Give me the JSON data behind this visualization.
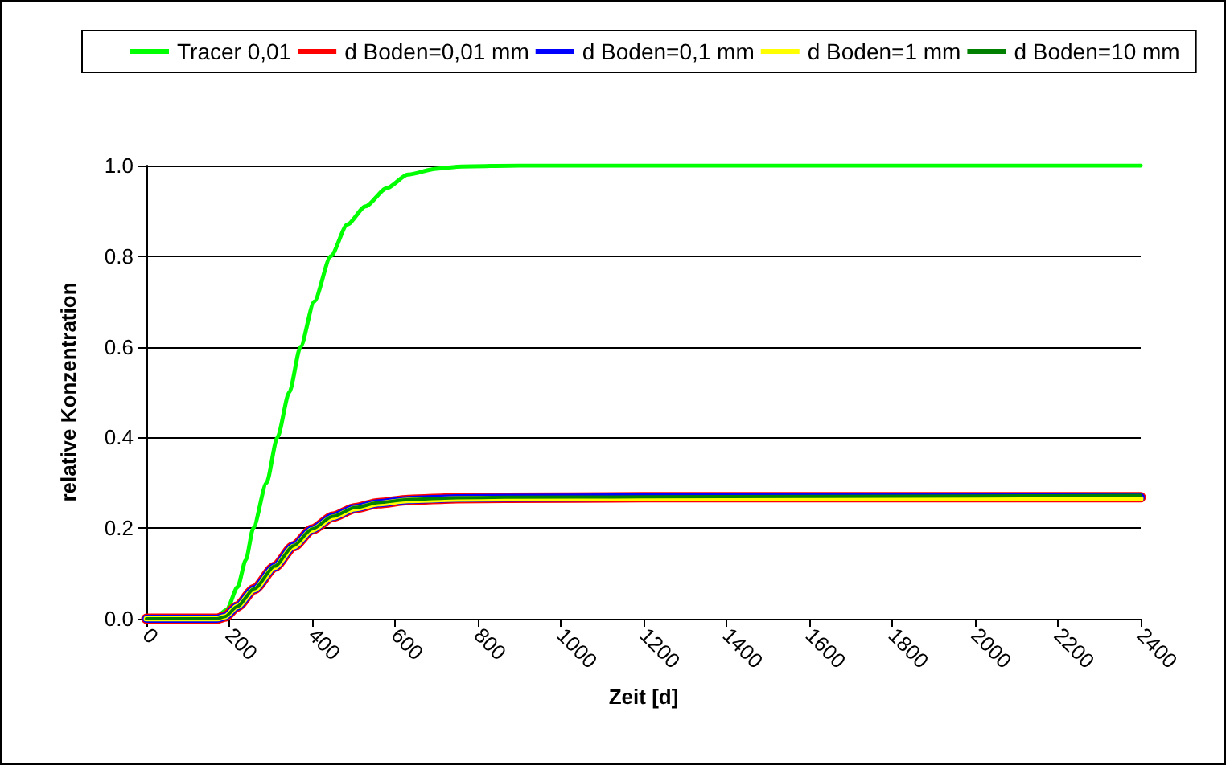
{
  "chart_data": {
    "type": "line",
    "xlabel": "Zeit [d]",
    "ylabel": "relative Konzentration",
    "xlim": [
      0,
      2400
    ],
    "xticks": [
      0,
      200,
      400,
      600,
      800,
      1000,
      1200,
      1400,
      1600,
      1800,
      2000,
      2200,
      2400
    ],
    "ylim": [
      0,
      1
    ],
    "yticks": [
      {
        "value": 0,
        "label": "0.0"
      },
      {
        "value": 0.2,
        "label": "0.2"
      },
      {
        "value": 0.4,
        "label": "0.4"
      },
      {
        "value": 0.6,
        "label": "0.6"
      },
      {
        "value": 0.8,
        "label": "0.8"
      },
      {
        "value": 1,
        "label": "1.0"
      }
    ],
    "grid": "y",
    "legend": "top",
    "marker": "none",
    "line_style": "solid",
    "series": [
      {
        "name": "Tracer 0,01",
        "color": "#00ff00",
        "x": [
          0,
          150,
          170,
          194,
          220,
          240,
          258,
          290,
          316,
          345,
          372,
          405,
          445,
          485,
          529,
          580,
          631,
          700,
          761,
          900,
          1200,
          1600,
          2000,
          2400
        ],
        "values": [
          0,
          0,
          0.005,
          0.02,
          0.07,
          0.13,
          0.2,
          0.3,
          0.4,
          0.5,
          0.6,
          0.7,
          0.8,
          0.87,
          0.91,
          0.95,
          0.98,
          0.993,
          0.998,
          1,
          1,
          1,
          1,
          1
        ]
      },
      {
        "name": "d Boden=0,01 mm",
        "color": "#ff0000",
        "x": [
          0,
          170,
          190,
          219,
          260,
          310,
          355,
          400,
          450,
          503,
          560,
          632,
          750,
          865,
          1200,
          1600,
          2000,
          2400
        ],
        "values": [
          0,
          0,
          0.005,
          0.027,
          0.065,
          0.115,
          0.16,
          0.197,
          0.225,
          0.244,
          0.255,
          0.262,
          0.266,
          0.267,
          0.268,
          0.268,
          0.268,
          0.268
        ]
      },
      {
        "name": "d Boden=0,1 mm",
        "color": "#0000ff",
        "x": [
          0,
          170,
          190,
          219,
          260,
          310,
          355,
          400,
          450,
          503,
          560,
          632,
          750,
          865,
          1200,
          1600,
          2000,
          2400
        ],
        "values": [
          0,
          0,
          0.005,
          0.027,
          0.065,
          0.115,
          0.16,
          0.197,
          0.225,
          0.244,
          0.255,
          0.262,
          0.266,
          0.267,
          0.268,
          0.268,
          0.268,
          0.268
        ]
      },
      {
        "name": "d Boden=1 mm",
        "color": "#ffff00",
        "x": [
          0,
          170,
          190,
          219,
          260,
          310,
          355,
          400,
          450,
          503,
          560,
          632,
          750,
          865,
          1200,
          1600,
          2000,
          2400
        ],
        "values": [
          0,
          0,
          0.005,
          0.027,
          0.064,
          0.114,
          0.159,
          0.196,
          0.224,
          0.243,
          0.254,
          0.261,
          0.264,
          0.265,
          0.265,
          0.265,
          0.265,
          0.265
        ]
      },
      {
        "name": "d Boden=10 mm",
        "color": "#008000",
        "x": [
          0,
          170,
          190,
          219,
          260,
          310,
          355,
          400,
          450,
          503,
          560,
          632,
          750,
          865,
          1200,
          1600,
          2000,
          2400
        ],
        "values": [
          0,
          0,
          0.005,
          0.027,
          0.066,
          0.116,
          0.161,
          0.198,
          0.226,
          0.245,
          0.256,
          0.263,
          0.267,
          0.268,
          0.269,
          0.27,
          0.271,
          0.272
        ]
      }
    ]
  }
}
